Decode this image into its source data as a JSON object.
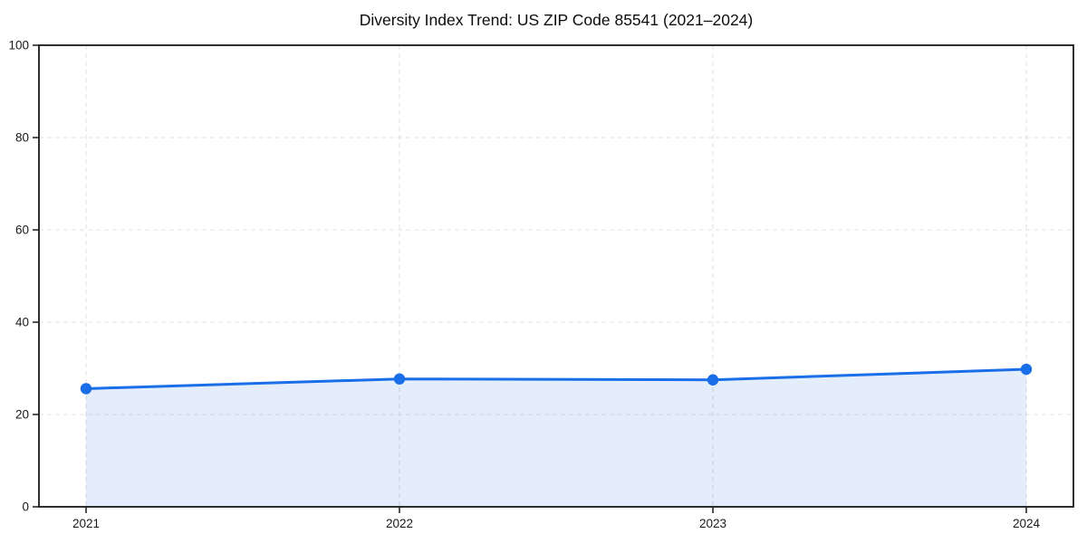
{
  "chart_data": {
    "type": "line",
    "title": "Diversity Index Trend: US ZIP Code 85541 (2021–2024)",
    "x": [
      2021,
      2022,
      2023,
      2024
    ],
    "values": [
      25.6,
      27.7,
      27.5,
      29.8
    ],
    "ylim": [
      0,
      100
    ],
    "yticks": [
      0,
      20,
      40,
      60,
      80,
      100
    ],
    "xticks": [
      2021,
      2022,
      2023,
      2024
    ],
    "xlabel": "",
    "ylabel": "",
    "grid": true,
    "area_fill": true,
    "legend": false,
    "colors": {
      "line": "#1a6ee8",
      "marker": "#1a6ee8",
      "fill": "#1a6ee8",
      "fill_opacity": 0.12,
      "grid": "#e2e2e2",
      "axis": "#1a1a1a",
      "tick_text": "#1a1a1a",
      "background": "#ffffff"
    }
  }
}
